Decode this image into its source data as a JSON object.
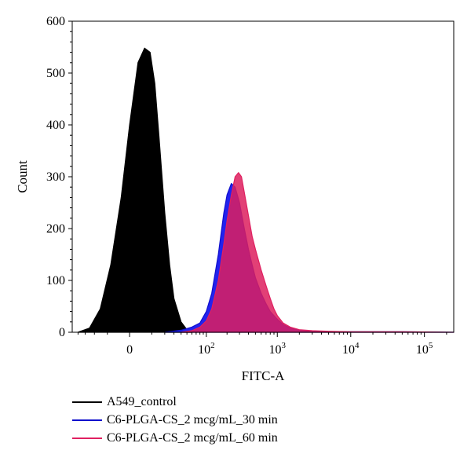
{
  "chart_data": {
    "type": "area",
    "xlabel": "FITC-A",
    "ylabel": "Count",
    "ylim": [
      0,
      600
    ],
    "y_ticks": [
      0,
      100,
      200,
      300,
      400,
      500,
      600
    ],
    "y_tick_labels": [
      "0",
      "100",
      "200",
      "300",
      "400",
      "500",
      "600"
    ],
    "x_scale": "logicle",
    "x_ticks": [
      0,
      100,
      1000,
      10000,
      100000
    ],
    "x_tick_labels": [
      {
        "base": "0",
        "exp": ""
      },
      {
        "base": "10",
        "exp": "2"
      },
      {
        "base": "10",
        "exp": "3"
      },
      {
        "base": "10",
        "exp": "4"
      },
      {
        "base": "10",
        "exp": "5"
      }
    ],
    "xlim": [
      -50,
      250000
    ],
    "legend_position": "bottom",
    "series": [
      {
        "name": "A549_control",
        "color": "#000000",
        "fill": "#000000",
        "x": [
          -40,
          -25,
          -15,
          -8,
          -3,
          0,
          3,
          6,
          9,
          12,
          15,
          20,
          25,
          30,
          40,
          50,
          60
        ],
        "y": [
          0,
          8,
          45,
          130,
          260,
          400,
          520,
          548,
          540,
          480,
          380,
          230,
          130,
          65,
          20,
          5,
          0
        ]
      },
      {
        "name": "C6-PLGA-CS_2 mcg/mL_30 min",
        "color": "#1010cc",
        "fill": "#2222ee",
        "x": [
          20,
          40,
          60,
          80,
          100,
          120,
          150,
          180,
          200,
          230,
          260,
          300,
          350,
          400,
          450,
          500,
          600,
          700,
          800,
          1000,
          1200,
          1500,
          2000,
          3000,
          5000,
          10000,
          50000,
          250000
        ],
        "y": [
          0,
          4,
          10,
          18,
          40,
          75,
          150,
          230,
          265,
          287,
          280,
          250,
          200,
          160,
          130,
          105,
          75,
          55,
          40,
          25,
          15,
          8,
          4,
          2,
          1,
          1,
          1,
          0
        ]
      },
      {
        "name": "C6-PLGA-CS_2 mcg/mL_60 min",
        "color": "#e02060",
        "fill": "#dd1e5e",
        "x": [
          40,
          60,
          80,
          100,
          120,
          150,
          180,
          200,
          230,
          260,
          290,
          320,
          350,
          400,
          450,
          500,
          600,
          700,
          800,
          900,
          1000,
          1200,
          1500,
          2000,
          3000,
          5000,
          10000,
          50000,
          250000
        ],
        "y": [
          0,
          3,
          10,
          22,
          45,
          100,
          170,
          215,
          265,
          300,
          308,
          300,
          270,
          225,
          185,
          160,
          120,
          90,
          65,
          45,
          32,
          18,
          10,
          5,
          3,
          2,
          1,
          1,
          0
        ]
      }
    ]
  }
}
